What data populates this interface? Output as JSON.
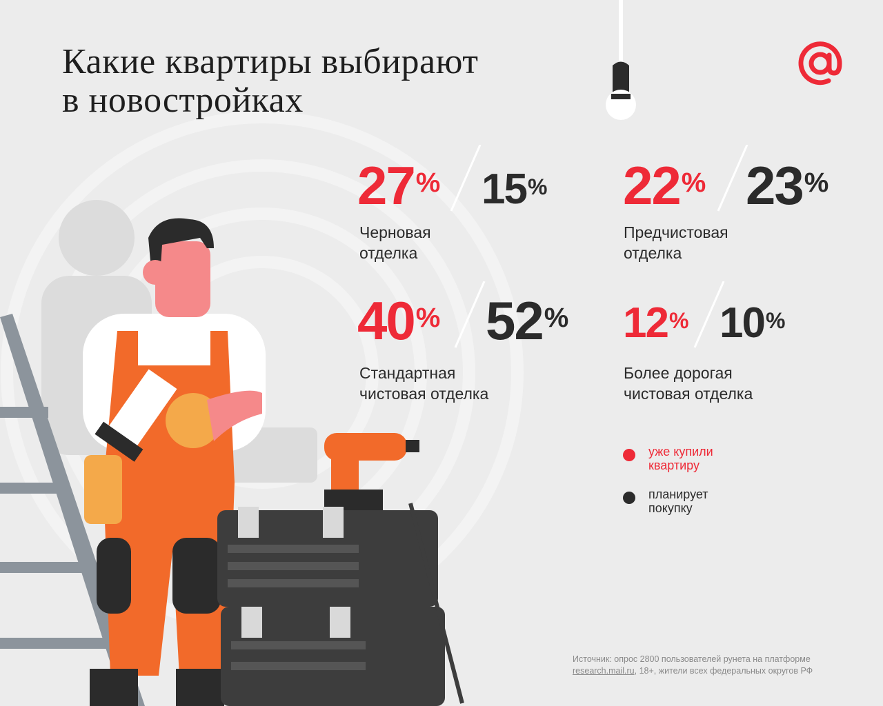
{
  "title": {
    "line1": "Какие квартиры выбирают",
    "line2": "в новостройках"
  },
  "brand": {
    "icon": "mail-ru-at-logo",
    "color": "#ee2a37"
  },
  "colors": {
    "bought": "#ee2a37",
    "planned": "#2b2b2b"
  },
  "stats": [
    {
      "bought": "27",
      "planned": "15",
      "unit": "%",
      "label": [
        "Черновая",
        "отделка"
      ]
    },
    {
      "bought": "22",
      "planned": "23",
      "unit": "%",
      "label": [
        "Предчистовая",
        "отделка"
      ]
    },
    {
      "bought": "40",
      "planned": "52",
      "unit": "%",
      "label": [
        "Стандартная",
        "чистовая отделка"
      ]
    },
    {
      "bought": "12",
      "planned": "10",
      "unit": "%",
      "label": [
        "Более дорогая",
        "чистовая отделка"
      ]
    }
  ],
  "legend": {
    "bought": [
      "уже купили",
      "квартиру"
    ],
    "planned": [
      "планирует",
      "покупку"
    ]
  },
  "source": {
    "line1": "Источник: опрос 2800 пользователей рунета на платформе",
    "link": "research.mail.ru",
    "line2_rest": ", 18+, жители всех федеральных округов РФ"
  }
}
